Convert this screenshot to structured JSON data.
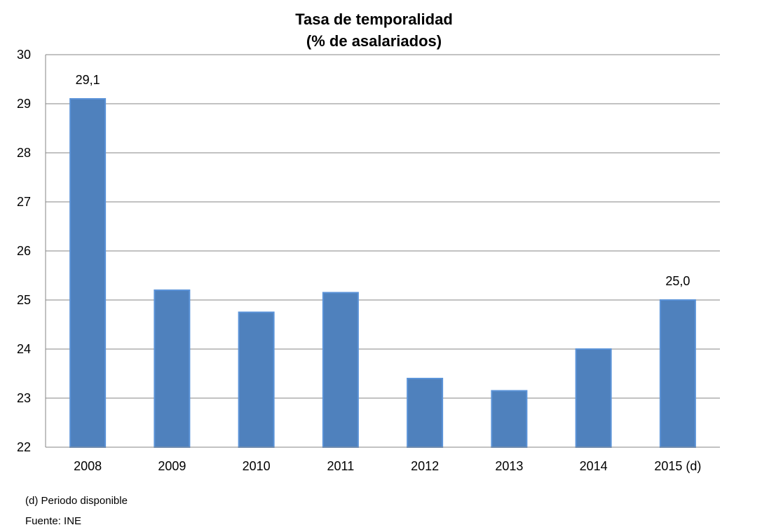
{
  "chart_data": {
    "type": "bar",
    "title": "Tasa de temporalidad",
    "subtitle": "(% de asalariados)",
    "categories": [
      "2008",
      "2009",
      "2010",
      "2011",
      "2012",
      "2013",
      "2014",
      "2015 (d)"
    ],
    "values": [
      29.1,
      25.2,
      24.75,
      25.15,
      23.4,
      23.15,
      24.0,
      25.0
    ],
    "data_labels": [
      {
        "index": 0,
        "text": "29,1"
      },
      {
        "index": 7,
        "text": "25,0"
      }
    ],
    "ylim": [
      22,
      30
    ],
    "yticks": [
      "22",
      "23",
      "24",
      "25",
      "26",
      "27",
      "28",
      "29",
      "30"
    ],
    "grid": true,
    "bar_color": "#4f81bd",
    "bar_edge_color": "#5b93d8",
    "grid_color": "#868686"
  },
  "notes": {
    "footnote": "(d) Periodo disponible",
    "source": "Fuente: INE"
  }
}
